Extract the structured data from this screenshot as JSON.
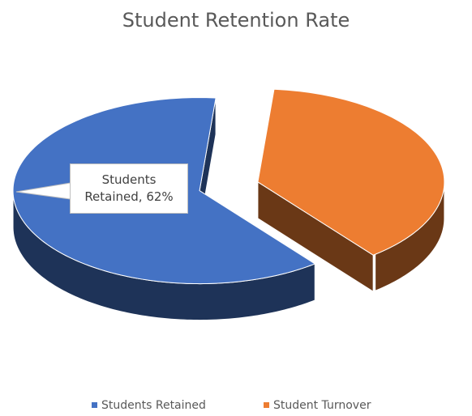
{
  "chart_data": {
    "type": "pie",
    "title": "Student Retention Rate",
    "categories": [
      "Students Retained",
      "Student Turnover"
    ],
    "values": [
      62,
      38
    ],
    "value_labels": [
      "Students Retained, 62%",
      null
    ],
    "colors": [
      "#4472c4",
      "#ed7d31"
    ],
    "legend": "bottom"
  }
}
